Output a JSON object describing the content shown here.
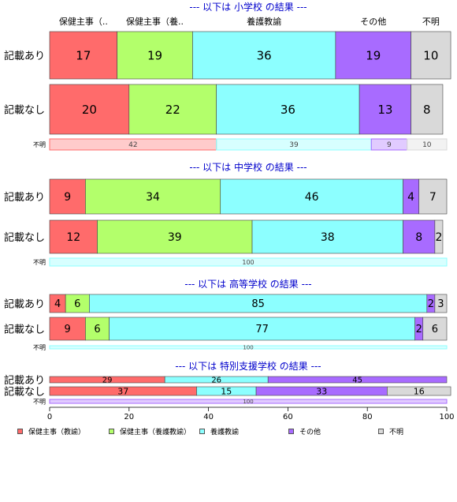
{
  "chart_data": {
    "type": "bar",
    "orientation": "horizontal",
    "stacked": true,
    "xlim": [
      0,
      100
    ],
    "xticks": [
      0,
      20,
      40,
      60,
      80,
      100
    ],
    "colors": {
      "保健主事（教諭）": "#ff6b6b",
      "保健主事（養護教諭）": "#b3ff6b",
      "養護教諭": "#8cffff",
      "その他": "#a86bff",
      "不明": "#d9d9d9"
    },
    "legend": {
      "placement": "bottom",
      "entries": [
        "保健主事（教諭）",
        "保健主事（養護教諭）",
        "養護教諭",
        "その他",
        "不明"
      ]
    },
    "panels": [
      {
        "title": "--- 以下は 小学校 の結果 ---",
        "column_labels": [
          "保健主事（..",
          "保健主事（養..",
          "養護教諭",
          "その他",
          "不明"
        ],
        "rows": [
          {
            "label": "記載あり",
            "values": [
              17,
              19,
              36,
              19,
              10
            ]
          },
          {
            "label": "記載なし",
            "values": [
              20,
              22,
              36,
              13,
              8
            ]
          },
          {
            "label": "不明",
            "values": [
              42,
              0,
              39,
              9,
              10
            ]
          }
        ]
      },
      {
        "title": "--- 以下は 中学校 の結果 ---",
        "rows": [
          {
            "label": "記載あり",
            "values": [
              9,
              34,
              46,
              4,
              7
            ]
          },
          {
            "label": "記載なし",
            "values": [
              12,
              39,
              38,
              8,
              2
            ]
          },
          {
            "label": "不明",
            "values": [
              0,
              0,
              100,
              0,
              0
            ]
          }
        ]
      },
      {
        "title": "--- 以下は 高等学校 の結果 ---",
        "rows": [
          {
            "label": "記載あり",
            "values": [
              4,
              6,
              85,
              2,
              3
            ]
          },
          {
            "label": "記載なし",
            "values": [
              9,
              6,
              77,
              2,
              6
            ]
          },
          {
            "label": "不明",
            "values": [
              0,
              0,
              100,
              0,
              0
            ]
          }
        ]
      },
      {
        "title": "--- 以下は 特別支援学校 の結果 ---",
        "rows": [
          {
            "label": "記載あり",
            "values": [
              29,
              0,
              26,
              45,
              0
            ]
          },
          {
            "label": "記載なし",
            "values": [
              37,
              0,
              15,
              33,
              16
            ]
          },
          {
            "label": "不明",
            "values": [
              0,
              0,
              0,
              100,
              0
            ]
          }
        ]
      }
    ]
  }
}
